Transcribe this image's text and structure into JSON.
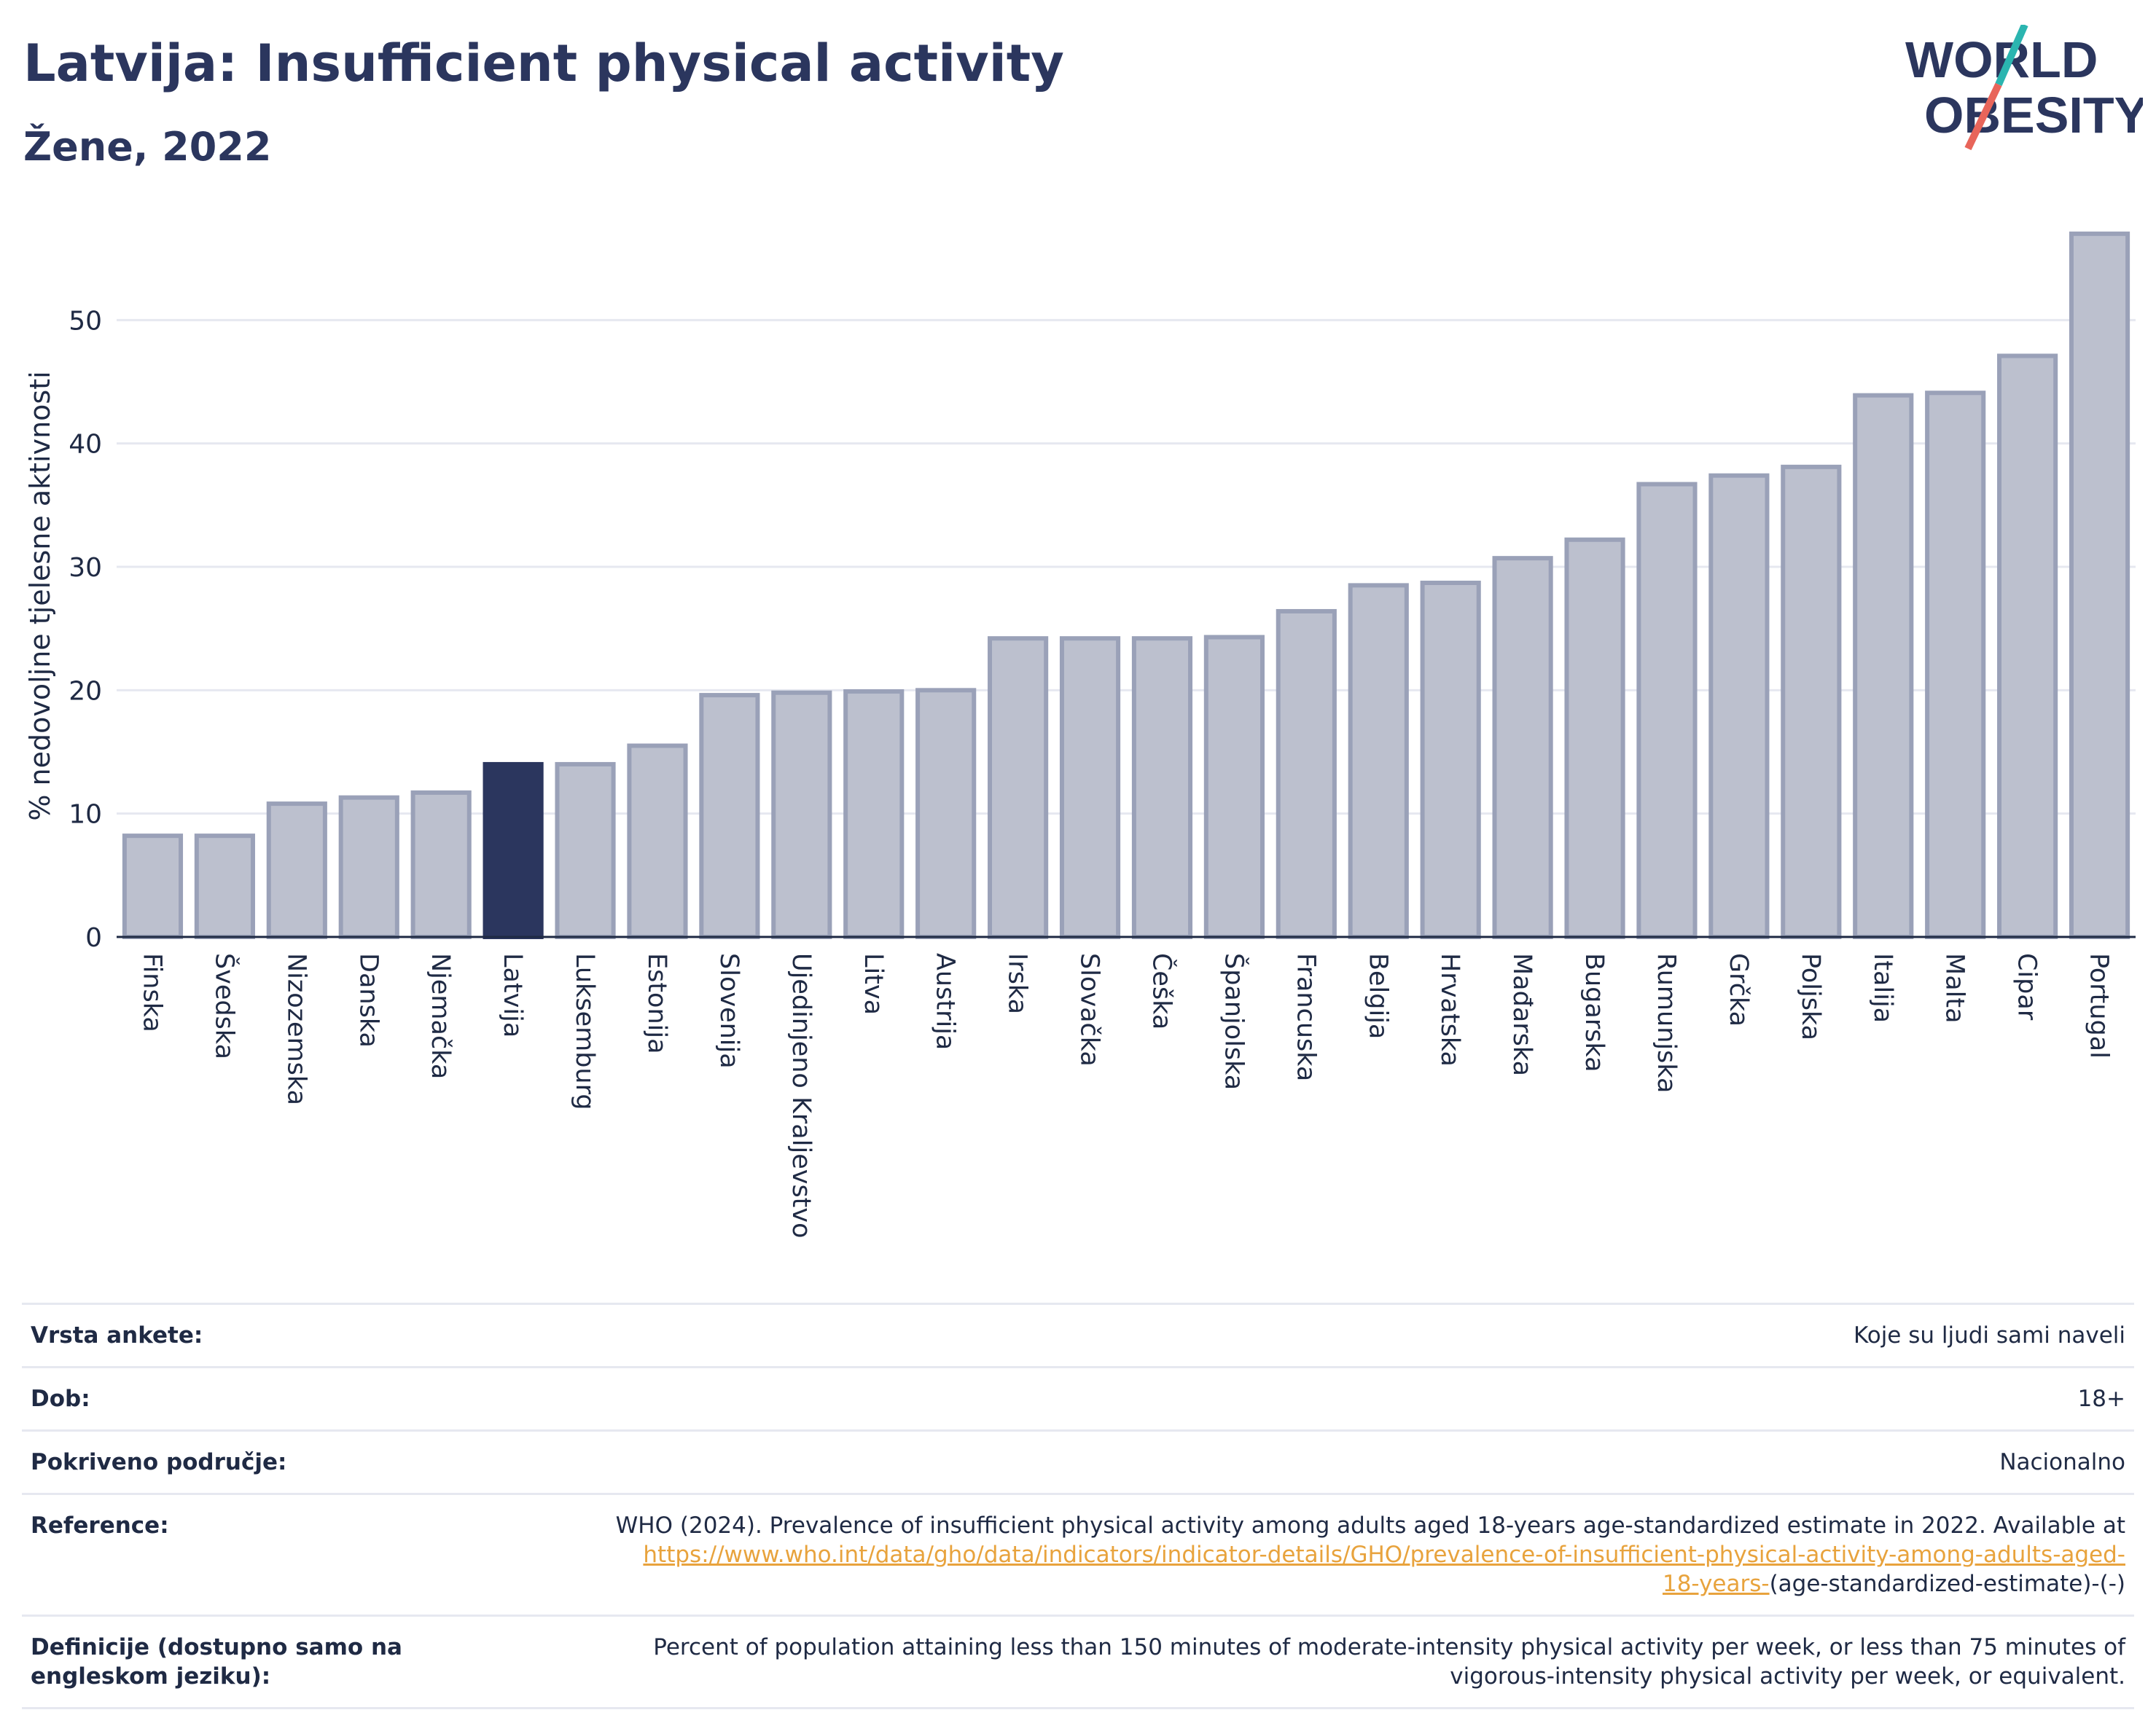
{
  "header": {
    "title": "Latvija: Insufficient physical activity",
    "subtitle": "Žene, 2022"
  },
  "logo": {
    "line1": "WORLD",
    "line2": "OBESITY",
    "accent_teal": "#2bb5b0",
    "accent_coral": "#e8655a"
  },
  "colors": {
    "bar": "#bcc0ce",
    "bar_edge": "#9aa1b8",
    "highlight": "#2b365e",
    "grid": "#e6e8f0"
  },
  "chart_data": {
    "type": "bar",
    "ylabel": "% nedovoljne tjelesne aktivnosti",
    "xlabel": "",
    "ylim": [
      0,
      60
    ],
    "yticks": [
      0,
      10,
      20,
      30,
      40,
      50
    ],
    "grid": true,
    "highlight": "Latvija",
    "categories": [
      "Finska",
      "Švedska",
      "Nizozemska",
      "Danska",
      "Njemačka",
      "Latvija",
      "Luksemburg",
      "Estonija",
      "Slovenija",
      "Ujedinjeno Kraljevstvo",
      "Litva",
      "Austrija",
      "Irska",
      "Slovačka",
      "Češka",
      "Španjolska",
      "Francuska",
      "Belgija",
      "Hrvatska",
      "Mađarska",
      "Bugarska",
      "Rumunjska",
      "Grčka",
      "Poljska",
      "Italija",
      "Malta",
      "Cipar",
      "Portugal"
    ],
    "values": [
      8.2,
      8.2,
      10.8,
      11.3,
      11.7,
      14.0,
      14.0,
      15.5,
      19.6,
      19.8,
      19.9,
      20.0,
      24.2,
      24.2,
      24.2,
      24.3,
      26.4,
      28.5,
      28.7,
      30.7,
      32.2,
      36.7,
      37.4,
      38.1,
      43.9,
      44.1,
      47.1,
      57.0
    ]
  },
  "meta": {
    "survey_label": "Vrsta ankete:",
    "survey_value": "Koje su ljudi sami naveli",
    "age_label": "Dob:",
    "age_value": "18+",
    "coverage_label": "Pokriveno područje:",
    "coverage_value": "Nacionalno",
    "reference_label": "Reference:",
    "reference_text": "WHO (2024). Prevalence of insufficient physical activity among adults aged 18-years age-standardized estimate in 2022. Available at",
    "reference_link_1": "https://www.who.int/data/gho/data/indicators/indicator-details/GHO/prevalence-of-insufficient-physical-activity-among-adults-aged-",
    "reference_link_2": "18-years-",
    "reference_tail": "(age-standardized-estimate)-(-)",
    "definition_label": "Definicije (dostupno samo na engleskom jeziku):",
    "definition_value": "Percent of population attaining less than 150 minutes of moderate-intensity physical activity per week, or less than 75 minutes of vigorous-intensity physical activity per week, or equivalent."
  }
}
